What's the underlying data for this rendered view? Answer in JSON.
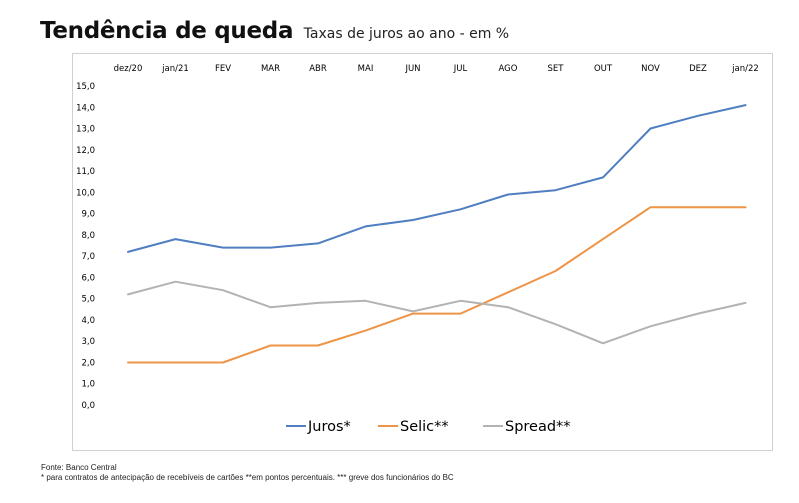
{
  "header": {
    "title": "Tendência de queda",
    "subtitle": "Taxas de juros ao ano - em %"
  },
  "chart_data": {
    "type": "line",
    "categories": [
      "dez/20",
      "jan/21",
      "FEV",
      "MAR",
      "ABR",
      "MAI",
      "JUN",
      "JUL",
      "AGO",
      "SET",
      "OUT",
      "NOV",
      "DEZ",
      "jan/22"
    ],
    "y_ticks": [
      "0,0",
      "1,0",
      "2,0",
      "3,0",
      "4,0",
      "5,0",
      "6,0",
      "7,0",
      "8,0",
      "9,0",
      "10,0",
      "11,0",
      "12,0",
      "13,0",
      "14,0",
      "15,0"
    ],
    "ylim": [
      0,
      15
    ],
    "x_axis_position": "top",
    "grid": false,
    "legend_position": "bottom",
    "series": [
      {
        "name": "Juros*",
        "color": "#4f7ec1",
        "values": [
          7.2,
          7.8,
          7.4,
          7.4,
          7.6,
          8.4,
          8.7,
          9.2,
          9.9,
          10.1,
          10.7,
          13.0,
          13.6,
          14.1
        ]
      },
      {
        "name": "Selic**",
        "color": "#ee9447",
        "values": [
          2.0,
          2.0,
          2.0,
          2.8,
          2.8,
          3.5,
          4.3,
          4.3,
          5.3,
          6.3,
          7.8,
          9.3,
          9.3,
          9.3
        ]
      },
      {
        "name": "Spread**",
        "color": "#b3b3b3",
        "values": [
          5.2,
          5.8,
          5.4,
          4.6,
          4.8,
          4.9,
          4.4,
          4.9,
          4.6,
          3.8,
          2.9,
          3.7,
          4.3,
          4.8
        ]
      }
    ]
  },
  "footer": {
    "source": "Fonte: Banco Central",
    "notes": "* para contratos de antecipação de recebíveis de cartões   **em pontos percentuais.    *** greve dos funcionários do BC"
  }
}
